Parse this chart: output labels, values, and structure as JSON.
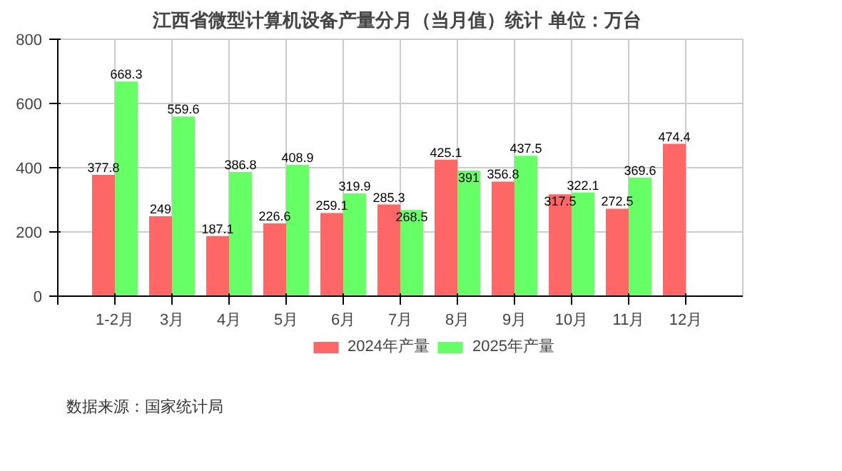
{
  "chart_data": {
    "type": "bar",
    "title": "江西省微型计算机设备产量分月（当月值）统计  单位：万台",
    "categories": [
      "1-2月",
      "3月",
      "4月",
      "5月",
      "6月",
      "7月",
      "8月",
      "9月",
      "10月",
      "11月",
      "12月"
    ],
    "series": [
      {
        "name": "2024年产量",
        "color": "#ff6666",
        "values": [
          377.8,
          249,
          187.1,
          226.6,
          259.1,
          285.3,
          425.1,
          356.8,
          317.5,
          272.5,
          474.4
        ]
      },
      {
        "name": "2025年产量",
        "color": "#66ff66",
        "values": [
          668.3,
          559.6,
          386.8,
          408.9,
          319.9,
          268.5,
          391,
          437.5,
          322.1,
          369.6,
          null
        ]
      }
    ],
    "ylim": [
      0,
      800
    ],
    "yticks": [
      0,
      200,
      400,
      600,
      800
    ],
    "grid": true,
    "legend": "bottom",
    "data_labels": true,
    "annotations": [
      "数据来源：国家统计局"
    ]
  }
}
